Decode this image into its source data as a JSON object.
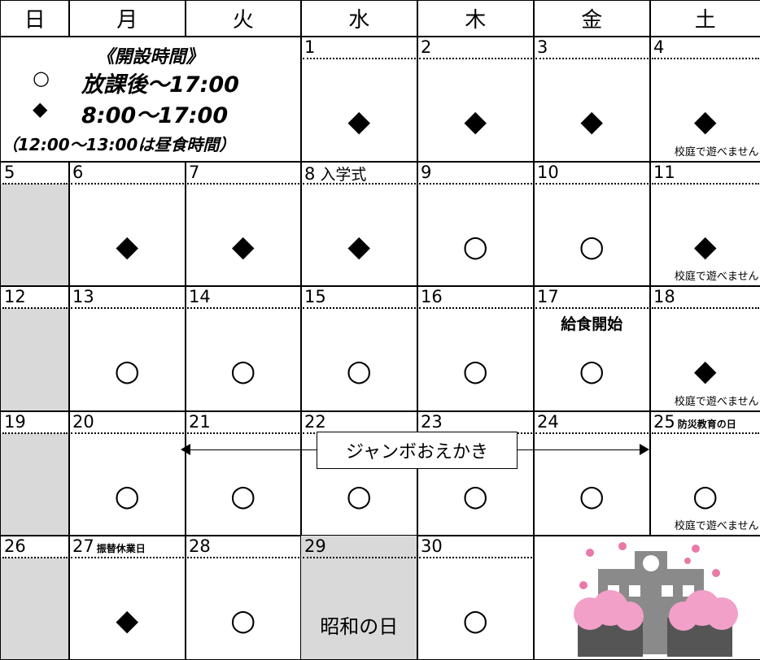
{
  "weekdays": [
    "日",
    "月",
    "火",
    "水",
    "木",
    "金",
    "土"
  ],
  "legend": {
    "title": "《開設時間》",
    "items": [
      {
        "symbol": "○",
        "text": "放課後～17:00"
      },
      {
        "symbol": "◆",
        "text": "8:00～17:00"
      }
    ],
    "note": "（12:00～13:00は昼食時間）"
  },
  "banner": {
    "text": "ジャンボおえかき"
  },
  "weeks": [
    {
      "cells": [
        null,
        null,
        null,
        {
          "day": "1",
          "symbol": "◆"
        },
        {
          "day": "2",
          "symbol": "◆"
        },
        {
          "day": "3",
          "symbol": "◆"
        },
        {
          "day": "4",
          "symbol": "◆",
          "note": "校庭で遊べません"
        }
      ]
    },
    {
      "cells": [
        {
          "day": "5"
        },
        {
          "day": "6",
          "symbol": "◆"
        },
        {
          "day": "7",
          "symbol": "◆"
        },
        {
          "day": "8",
          "label": "入学式",
          "symbol": "◆"
        },
        {
          "day": "9",
          "symbol": "○"
        },
        {
          "day": "10",
          "symbol": "○"
        },
        {
          "day": "11",
          "symbol": "◆",
          "note": "校庭で遊べません"
        }
      ]
    },
    {
      "cells": [
        {
          "day": "12"
        },
        {
          "day": "13",
          "symbol": "○"
        },
        {
          "day": "14",
          "symbol": "○"
        },
        {
          "day": "15",
          "symbol": "○"
        },
        {
          "day": "16",
          "symbol": "○"
        },
        {
          "day": "17",
          "sub_label": "給食開始",
          "symbol": "○"
        },
        {
          "day": "18",
          "symbol": "◆",
          "note": "校庭で遊べません"
        }
      ]
    },
    {
      "cells": [
        {
          "day": "19"
        },
        {
          "day": "20",
          "symbol": "○"
        },
        {
          "day": "21",
          "symbol": "○"
        },
        {
          "day": "22",
          "symbol": "○"
        },
        {
          "day": "23",
          "symbol": "○"
        },
        {
          "day": "24",
          "symbol": "○"
        },
        {
          "day": "25",
          "small_label": "防災教育の日",
          "symbol": "○",
          "note": "校庭で遊べません"
        }
      ]
    },
    {
      "cells": [
        {
          "day": "26"
        },
        {
          "day": "27",
          "small_label": "振替休業日",
          "symbol": "◆"
        },
        {
          "day": "28",
          "symbol": "○"
        },
        {
          "day": "29",
          "holiday": "昭和の日"
        },
        {
          "day": "30",
          "symbol": "○"
        },
        null,
        null
      ]
    }
  ]
}
